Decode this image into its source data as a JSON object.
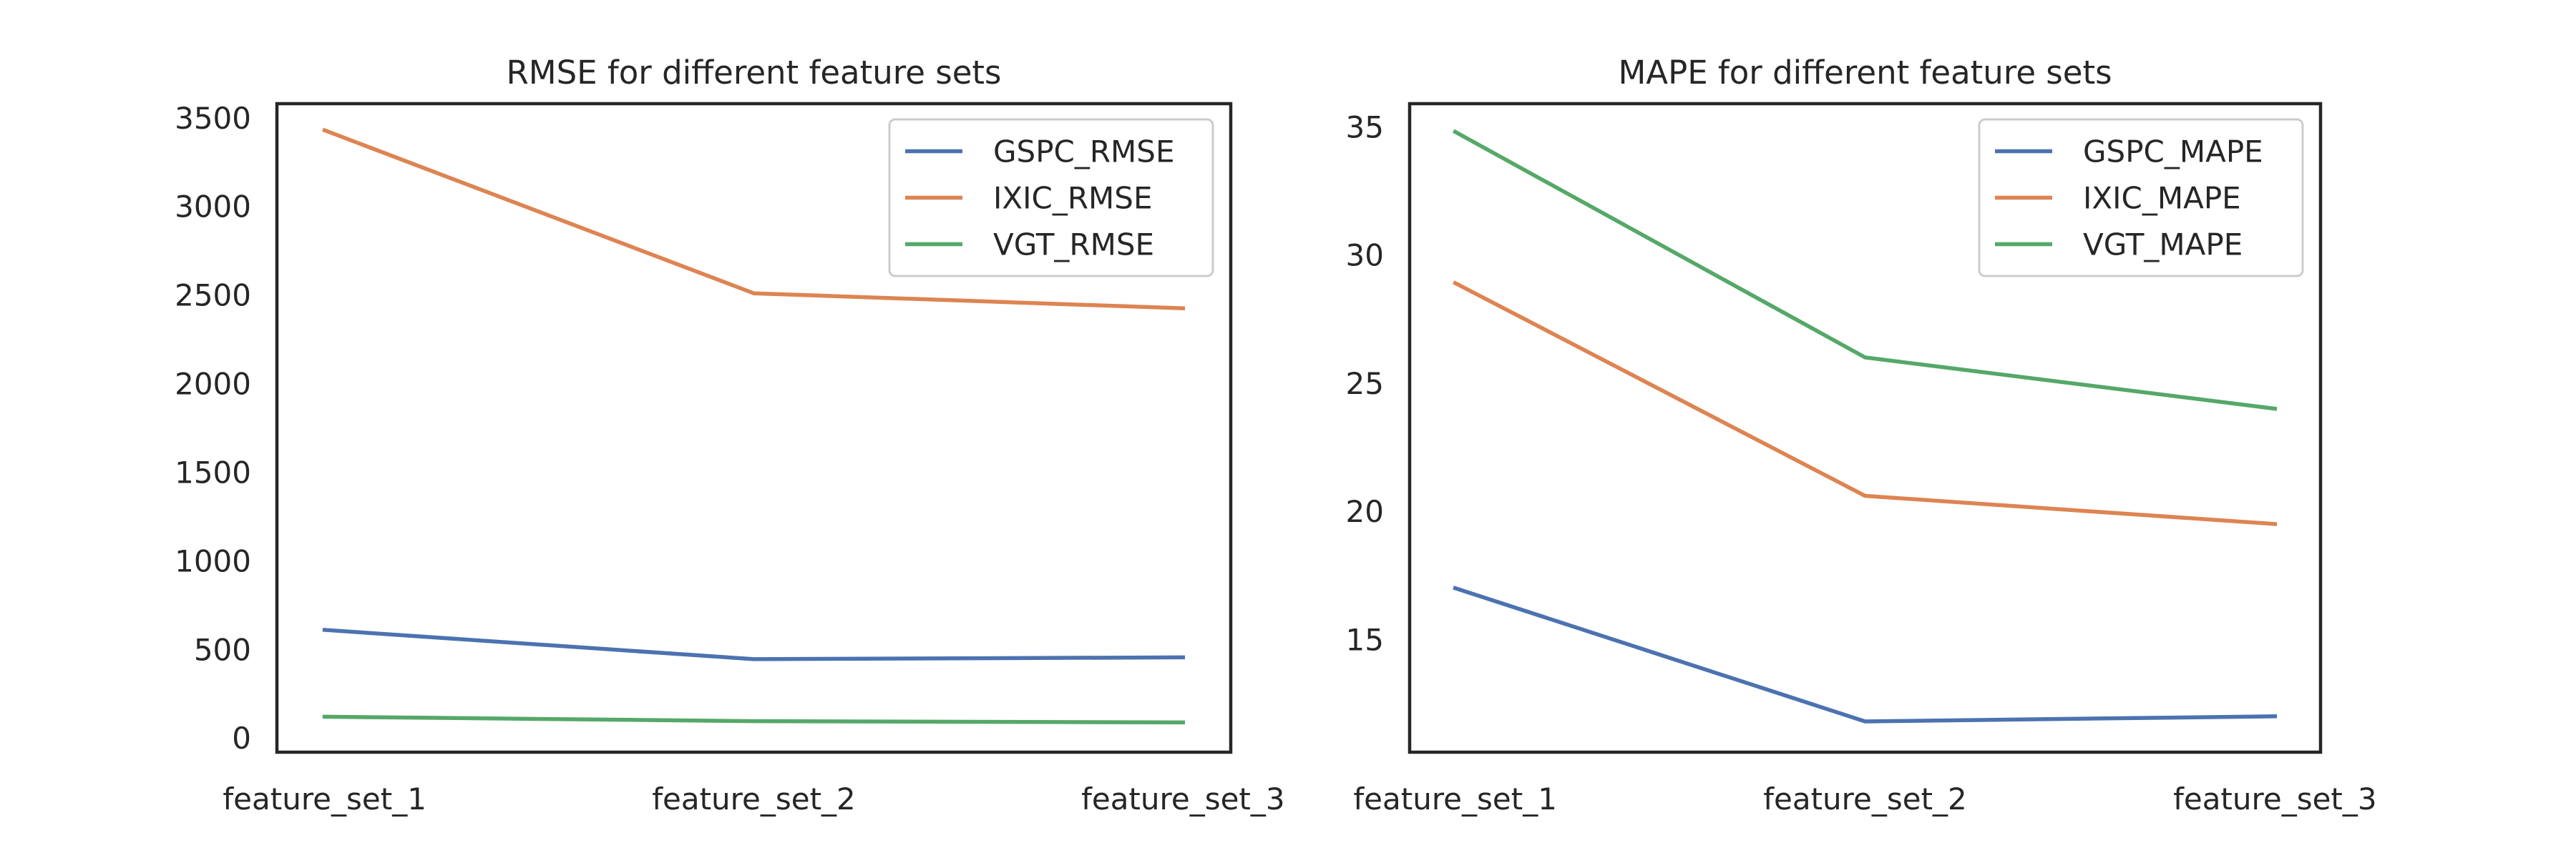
{
  "chart_data": [
    {
      "type": "line",
      "title": "RMSE for different feature sets",
      "xlabel": "",
      "ylabel": "",
      "categories": [
        "feature_set_1",
        "feature_set_2",
        "feature_set_3"
      ],
      "yticks": [
        0,
        500,
        1000,
        1500,
        2000,
        2500,
        3000,
        3500
      ],
      "ylim": [
        -80,
        3580
      ],
      "grid": false,
      "legend": "top-right",
      "series": [
        {
          "name": "GSPC_RMSE",
          "values": [
            610,
            445,
            455
          ],
          "color": "#4c72b0"
        },
        {
          "name": "IXIC_RMSE",
          "values": [
            3430,
            2510,
            2425
          ],
          "color": "#dd8452"
        },
        {
          "name": "VGT_RMSE",
          "values": [
            120,
            95,
            88
          ],
          "color": "#55a868"
        }
      ]
    },
    {
      "type": "line",
      "title": "MAPE for different feature sets",
      "xlabel": "",
      "ylabel": "",
      "categories": [
        "feature_set_1",
        "feature_set_2",
        "feature_set_3"
      ],
      "yticks": [
        15,
        20,
        25,
        30,
        35
      ],
      "ylim": [
        10.6,
        35.9
      ],
      "grid": false,
      "legend": "top-right",
      "series": [
        {
          "name": "GSPC_MAPE",
          "values": [
            17.0,
            11.8,
            12.0
          ],
          "color": "#4c72b0"
        },
        {
          "name": "IXIC_MAPE",
          "values": [
            28.9,
            20.6,
            19.5
          ],
          "color": "#dd8452"
        },
        {
          "name": "VGT_MAPE",
          "values": [
            34.8,
            26.0,
            24.0
          ],
          "color": "#55a868"
        }
      ]
    }
  ]
}
